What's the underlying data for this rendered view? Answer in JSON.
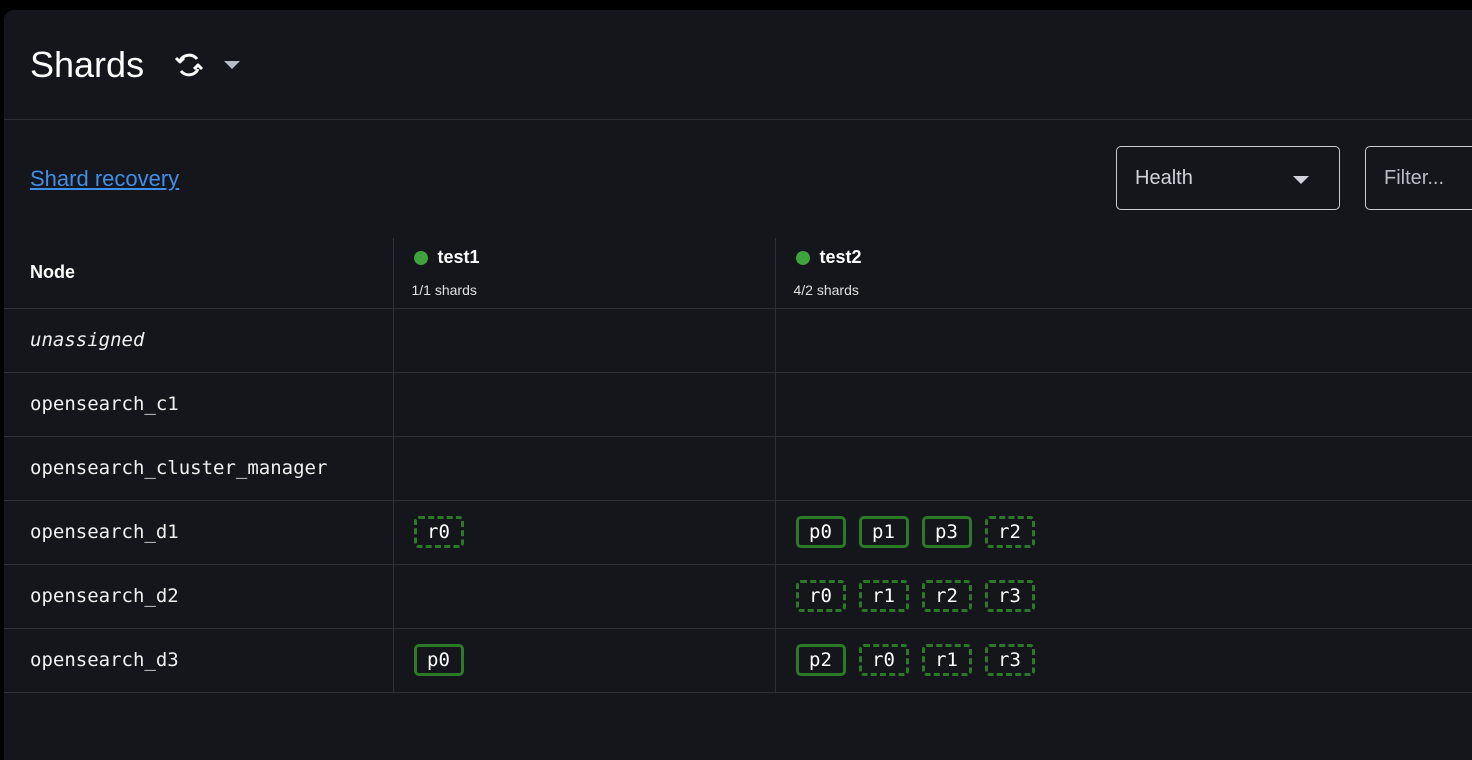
{
  "header": {
    "title": "Shards",
    "refresh_icon": "refresh-icon",
    "menu_icon": "caret-down-icon"
  },
  "toolbar": {
    "link": "Shard recovery",
    "health_select": "Health",
    "filter_placeholder": "Filter..."
  },
  "colors": {
    "health_green": "#3fa33d",
    "shard_border": "#2a7a26",
    "link": "#3d8fe8"
  },
  "table": {
    "node_header": "Node",
    "indices": [
      {
        "name": "test1",
        "shards": "1/1 shards",
        "health": "green"
      },
      {
        "name": "test2",
        "shards": "4/2 shards",
        "health": "green"
      }
    ],
    "rows": [
      {
        "node": "unassigned",
        "italic": true,
        "test1": [],
        "test2": []
      },
      {
        "node": "opensearch_c1",
        "test1": [],
        "test2": []
      },
      {
        "node": "opensearch_cluster_manager",
        "test1": [],
        "test2": []
      },
      {
        "node": "opensearch_d1",
        "test1": [
          "r0"
        ],
        "test2": [
          "p0",
          "p1",
          "p3",
          "r2"
        ]
      },
      {
        "node": "opensearch_d2",
        "test1": [],
        "test2": [
          "r0",
          "r1",
          "r2",
          "r3"
        ]
      },
      {
        "node": "opensearch_d3",
        "test1": [
          "p0"
        ],
        "test2": [
          "p2",
          "r0",
          "r1",
          "r3"
        ]
      }
    ]
  }
}
